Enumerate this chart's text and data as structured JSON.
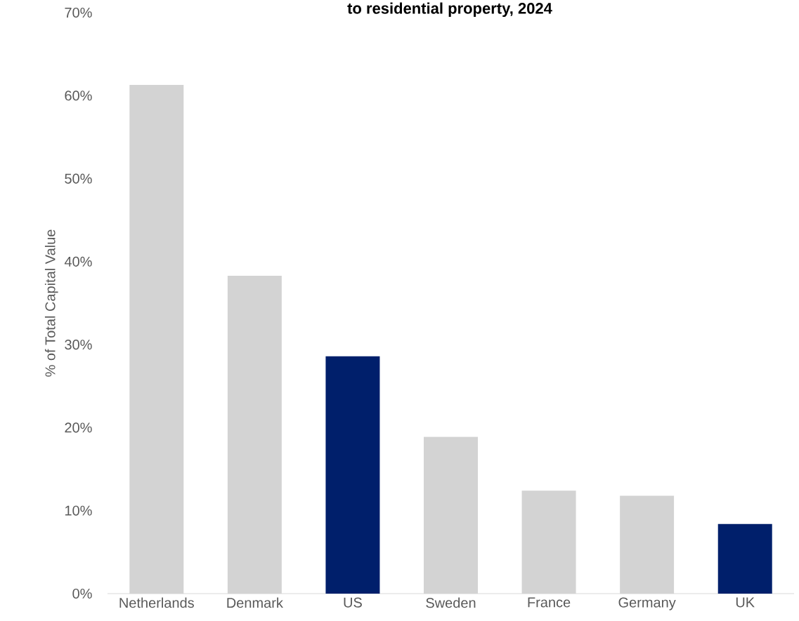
{
  "chart_data": {
    "type": "bar",
    "title": "to residential property, 2024",
    "ylabel": "% of Total Capital Value",
    "categories": [
      "Netherlands",
      "Denmark",
      "US",
      "Sweden",
      "France",
      "Germany",
      "UK"
    ],
    "values": [
      61.3,
      38.3,
      28.6,
      18.9,
      12.4,
      11.8,
      8.4
    ],
    "colors": [
      "#d3d3d3",
      "#d3d3d3",
      "#001f6b",
      "#d3d3d3",
      "#d3d3d3",
      "#d3d3d3",
      "#001f6b"
    ],
    "ylim": [
      0,
      70
    ],
    "yticks": [
      {
        "value": 0,
        "label": "0%"
      },
      {
        "value": 10,
        "label": "10%"
      },
      {
        "value": 20,
        "label": "20%"
      },
      {
        "value": 30,
        "label": "30%"
      },
      {
        "value": 40,
        "label": "40%"
      },
      {
        "value": 50,
        "label": "50%"
      },
      {
        "value": 60,
        "label": "60%"
      },
      {
        "value": 70,
        "label": "70%"
      }
    ],
    "grid": false
  }
}
